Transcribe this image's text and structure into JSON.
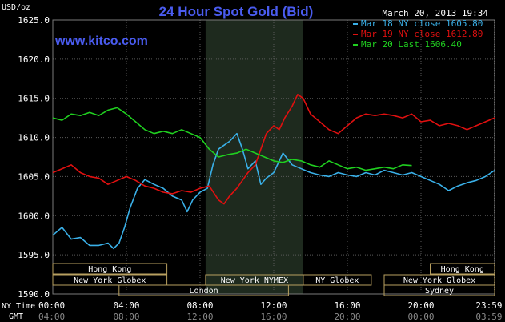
{
  "chart_data": {
    "type": "line",
    "title": "24 Hour Spot Gold (Bid)",
    "website": "www.kitco.com",
    "timestamp": "March 20, 2013 19:34",
    "ylabel": "USD/oz",
    "ylim": [
      1590,
      1625
    ],
    "y_ticks": [
      "1625.0",
      "1620.0",
      "1615.0",
      "1610.0",
      "1605.0",
      "1600.0",
      "1595.0",
      "1590.0"
    ],
    "y_tick_values": [
      1625,
      1620,
      1615,
      1610,
      1605,
      1600,
      1595,
      1590
    ],
    "xlim": [
      0,
      24
    ],
    "x_ticks_ny": [
      "00:00",
      "04:00",
      "08:00",
      "12:00",
      "16:00",
      "20:00",
      "23:59"
    ],
    "x_ticks_gmt": [
      "04:00",
      "08:00",
      "12:00",
      "16:00",
      "20:00",
      "00:00",
      "03:59"
    ],
    "x_tick_hours": [
      0,
      4,
      8,
      12,
      16,
      20,
      23.98
    ],
    "x_label_ny": "NY Time",
    "x_label_gmt": "GMT",
    "grid": true,
    "legend_position": "top-right",
    "highlight_hours": [
      8.3,
      13.6
    ],
    "colors": {
      "mar18": "#3ab0e8",
      "mar19": "#e01010",
      "mar20": "#20d020",
      "title": "#4a5cf0",
      "grid": "#5a5a5a",
      "session_box": "#b8a060",
      "session_text": "#ffffff",
      "highlight": "#1e2a1e"
    },
    "series": [
      {
        "name": "Mar 18 NY close 1605.80",
        "color_key": "mar18",
        "x": [
          0,
          0.5,
          1,
          1.5,
          2,
          2.5,
          3,
          3.3,
          3.6,
          3.9,
          4.2,
          4.6,
          5,
          5.5,
          6,
          6.5,
          7,
          7.3,
          7.6,
          8,
          8.4,
          8.7,
          9,
          9.3,
          9.6,
          10,
          10.3,
          10.6,
          11,
          11.3,
          11.6,
          12,
          12.5,
          13,
          13.5,
          14,
          14.5,
          15,
          15.5,
          16,
          16.5,
          17,
          17.5,
          18,
          18.5,
          19,
          19.5,
          20,
          20.5,
          21,
          21.5,
          22,
          22.5,
          23,
          23.5,
          24
        ],
        "y": [
          1597.5,
          1598.5,
          1597.0,
          1597.2,
          1596.2,
          1596.2,
          1596.5,
          1595.8,
          1596.5,
          1598.5,
          1601.0,
          1603.5,
          1604.6,
          1604.0,
          1603.5,
          1602.5,
          1602.0,
          1600.5,
          1602.0,
          1603.0,
          1603.5,
          1606.5,
          1608.5,
          1609.0,
          1609.5,
          1610.5,
          1608.5,
          1606.0,
          1607.0,
          1604.0,
          1604.8,
          1605.5,
          1608.0,
          1606.5,
          1606.0,
          1605.5,
          1605.2,
          1605.0,
          1605.5,
          1605.2,
          1605.0,
          1605.5,
          1605.2,
          1605.8,
          1605.5,
          1605.2,
          1605.5,
          1605.0,
          1604.5,
          1604.0,
          1603.2,
          1603.8,
          1604.2,
          1604.5,
          1605.0,
          1605.8
        ]
      },
      {
        "name": "Mar 19 NY close 1612.80",
        "color_key": "mar19",
        "x": [
          0,
          0.5,
          1,
          1.5,
          2,
          2.5,
          3,
          3.5,
          4,
          4.5,
          5,
          5.5,
          6,
          6.5,
          7,
          7.5,
          8,
          8.5,
          9,
          9.3,
          9.6,
          10,
          10.3,
          10.6,
          11,
          11.3,
          11.6,
          12,
          12.3,
          12.6,
          13,
          13.3,
          13.6,
          14,
          14.5,
          15,
          15.5,
          16,
          16.5,
          17,
          17.5,
          18,
          18.5,
          19,
          19.5,
          20,
          20.5,
          21,
          21.5,
          22,
          22.5,
          23,
          23.5,
          24
        ],
        "y": [
          1605.5,
          1606.0,
          1606.5,
          1605.5,
          1605.0,
          1604.8,
          1604.0,
          1604.5,
          1605.0,
          1604.5,
          1603.8,
          1603.5,
          1603.0,
          1602.8,
          1603.2,
          1603.0,
          1603.5,
          1603.8,
          1602.0,
          1601.5,
          1602.5,
          1603.5,
          1604.5,
          1605.5,
          1606.5,
          1608.5,
          1610.5,
          1611.5,
          1611.0,
          1612.5,
          1614.0,
          1615.5,
          1615.0,
          1613.0,
          1612.0,
          1611.0,
          1610.5,
          1611.5,
          1612.5,
          1613.0,
          1612.8,
          1613.0,
          1612.8,
          1612.5,
          1613.0,
          1612.0,
          1612.2,
          1611.5,
          1611.8,
          1611.5,
          1611.0,
          1611.5,
          1612.0,
          1612.5
        ]
      },
      {
        "name": "Mar 20 Last 1606.40",
        "color_key": "mar20",
        "x": [
          0,
          0.5,
          1,
          1.5,
          2,
          2.5,
          3,
          3.5,
          4,
          4.5,
          5,
          5.5,
          6,
          6.5,
          7,
          7.5,
          8,
          8.5,
          9,
          9.5,
          10,
          10.5,
          11,
          11.5,
          12,
          12.5,
          13,
          13.5,
          14,
          14.5,
          15,
          15.5,
          16,
          16.5,
          17,
          17.5,
          18,
          18.5,
          19,
          19.5
        ],
        "y": [
          1612.5,
          1612.2,
          1613.0,
          1612.8,
          1613.2,
          1612.8,
          1613.5,
          1613.8,
          1613.0,
          1612.0,
          1611.0,
          1610.5,
          1610.8,
          1610.5,
          1611.0,
          1610.5,
          1610.0,
          1608.5,
          1607.5,
          1607.8,
          1608.0,
          1608.5,
          1608.0,
          1607.5,
          1607.0,
          1606.8,
          1607.2,
          1607.0,
          1606.5,
          1606.2,
          1607.0,
          1606.5,
          1606.0,
          1606.2,
          1605.8,
          1606.0,
          1606.2,
          1606.0,
          1606.5,
          1606.4
        ]
      }
    ],
    "sessions": [
      {
        "label": "Hong Kong",
        "start": 0,
        "end": 6.2
      },
      {
        "label": "London",
        "start": 3.6,
        "end": 12.8
      },
      {
        "label": "New York Globex",
        "start": 0,
        "end": 6.2
      },
      {
        "label": "New York NYMEX",
        "start": 8.3,
        "end": 13.6
      },
      {
        "label": "NY Globex",
        "start": 13.6,
        "end": 17.3
      },
      {
        "label": "New York Globex",
        "start": 18.0,
        "end": 24
      },
      {
        "label": "Sydney",
        "start": 18.0,
        "end": 24
      },
      {
        "label": "Hong Kong",
        "start": 20.5,
        "end": 24
      }
    ]
  }
}
